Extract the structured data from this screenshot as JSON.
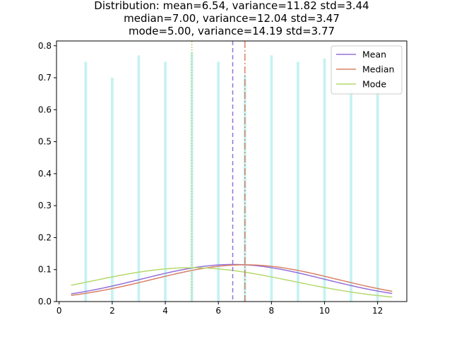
{
  "chart_data": {
    "type": "bar",
    "title_lines": [
      "Distribution: mean=6.54, variance=11.82 std=3.44",
      "median=7.00, variance=12.04 std=3.47",
      "mode=5.00, variance=14.19 std=3.77"
    ],
    "xlabel": "",
    "ylabel": "",
    "xlim": [
      -0.1,
      13.1
    ],
    "ylim": [
      0,
      0.815
    ],
    "xticks": [
      0,
      2,
      4,
      6,
      8,
      10,
      12
    ],
    "yticks": [
      0.0,
      0.1,
      0.2,
      0.3,
      0.4,
      0.5,
      0.6,
      0.7,
      0.8
    ],
    "histogram": {
      "color": "#c6f2f2",
      "bin_width": 0.1,
      "x": [
        1,
        2,
        3,
        4,
        5,
        6,
        7,
        8,
        9,
        10,
        11,
        12
      ],
      "values": [
        0.75,
        0.7,
        0.77,
        0.75,
        0.78,
        0.75,
        0.71,
        0.77,
        0.75,
        0.76,
        0.66,
        0.66
      ]
    },
    "vlines": [
      {
        "label": "Mean",
        "x": 6.54,
        "color": "#9370db",
        "dash": "6,4"
      },
      {
        "label": "Median",
        "x": 7.0,
        "color": "#d98066",
        "dash": "10,3,2,3"
      },
      {
        "label": "Mode",
        "x": 5.0,
        "color": "#b5d96d",
        "dash": "2,2"
      }
    ],
    "series": [
      {
        "name": "Mean",
        "type": "normal_pdf",
        "mu": 6.54,
        "sigma": 3.44,
        "color": "#9370db"
      },
      {
        "name": "Median",
        "type": "normal_pdf",
        "mu": 7.0,
        "sigma": 3.47,
        "color": "#d98066"
      },
      {
        "name": "Mode",
        "type": "normal_pdf",
        "mu": 5.0,
        "sigma": 3.77,
        "color": "#b5d96d"
      }
    ],
    "curve_x_range": [
      0.45,
      12.55
    ],
    "legend": {
      "placement": "top-right",
      "entries": [
        "Mean",
        "Median",
        "Mode"
      ]
    },
    "grid": false
  }
}
